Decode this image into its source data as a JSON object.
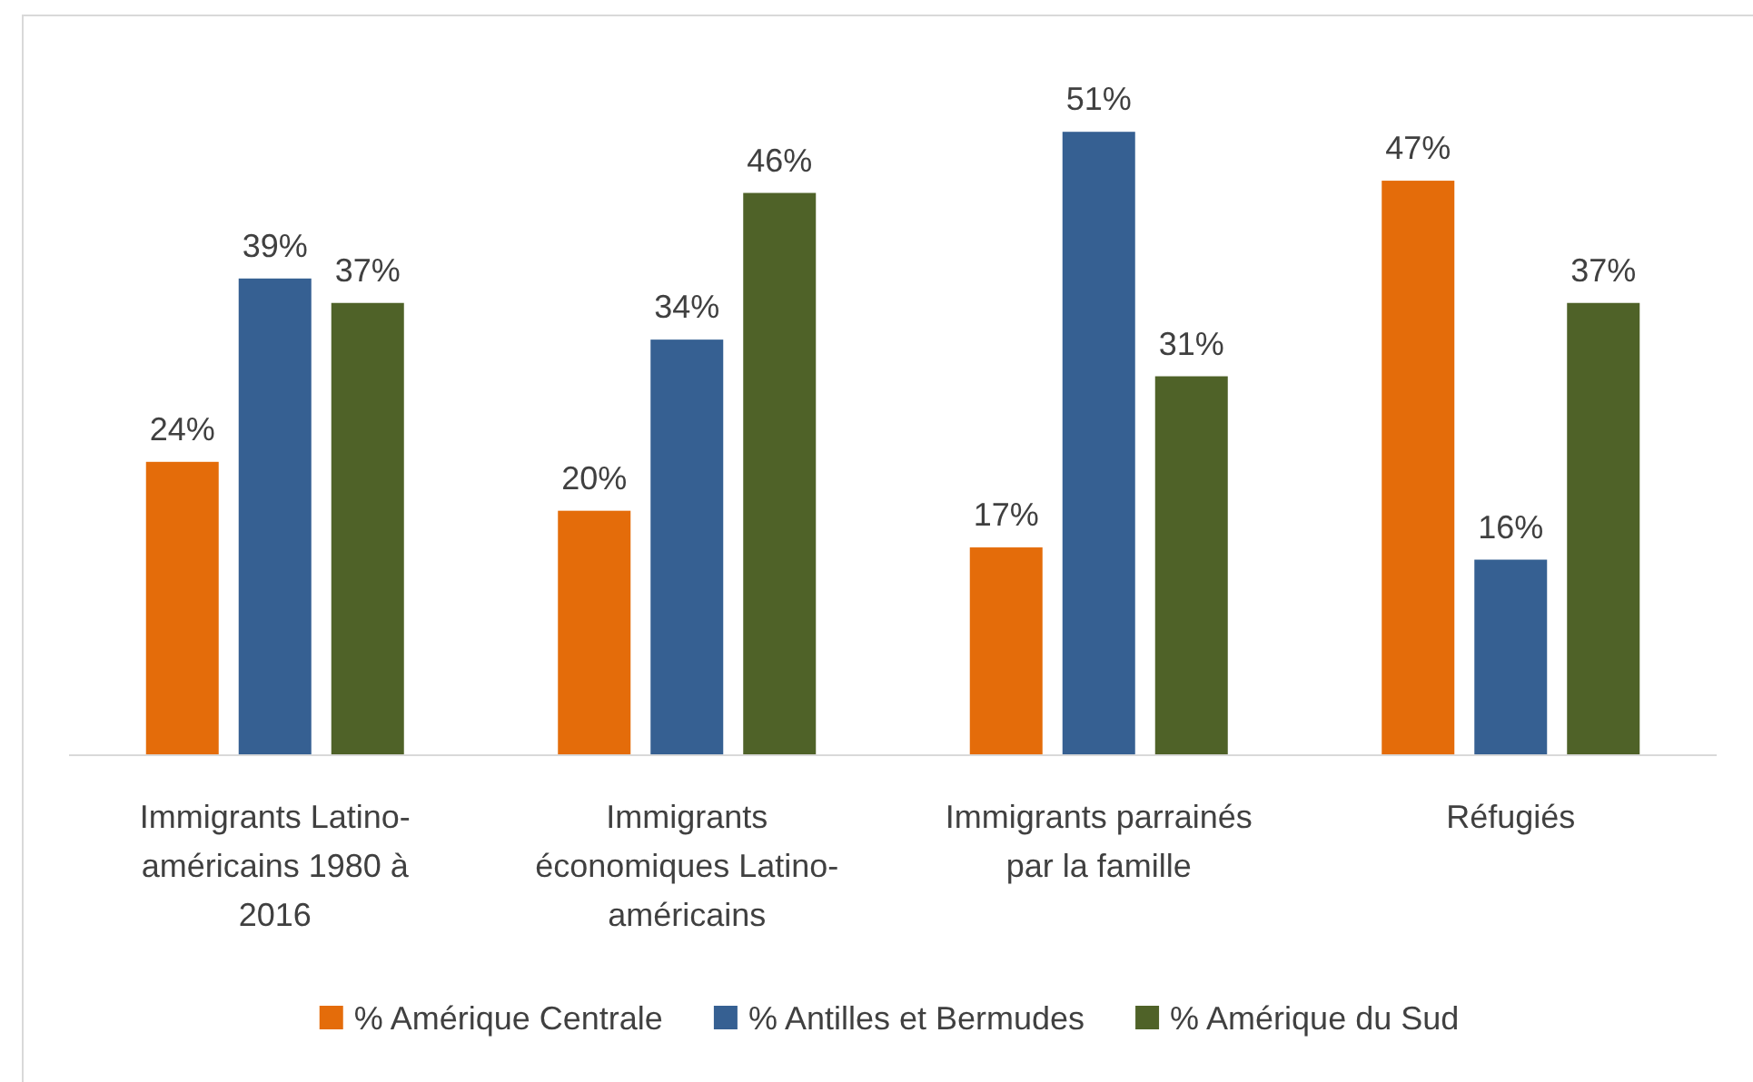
{
  "chart_data": {
    "type": "bar",
    "categories": [
      "Immigrants Latino-américains 1980 à 2016",
      "Immigrants économiques Latino-américains",
      "Immigrants parrainés par la famille",
      "Réfugiés"
    ],
    "series": [
      {
        "name": "% Amérique Centrale",
        "color": "#e46c0a",
        "values": [
          24,
          20,
          17,
          47
        ],
        "value_labels": [
          "24%",
          "20%",
          "17%",
          "47%"
        ]
      },
      {
        "name": "% Antilles et Bermudes",
        "color": "#366092",
        "values": [
          39,
          34,
          51,
          16
        ],
        "value_labels": [
          "39%",
          "34%",
          "51%",
          "16%"
        ]
      },
      {
        "name": "% Amérique du Sud",
        "color": "#4f6228",
        "values": [
          37,
          46,
          31,
          37
        ],
        "value_labels": [
          "37%",
          "46%",
          "31%",
          "37%"
        ]
      }
    ],
    "tick_labels": "x",
    "legend": "bottom"
  }
}
